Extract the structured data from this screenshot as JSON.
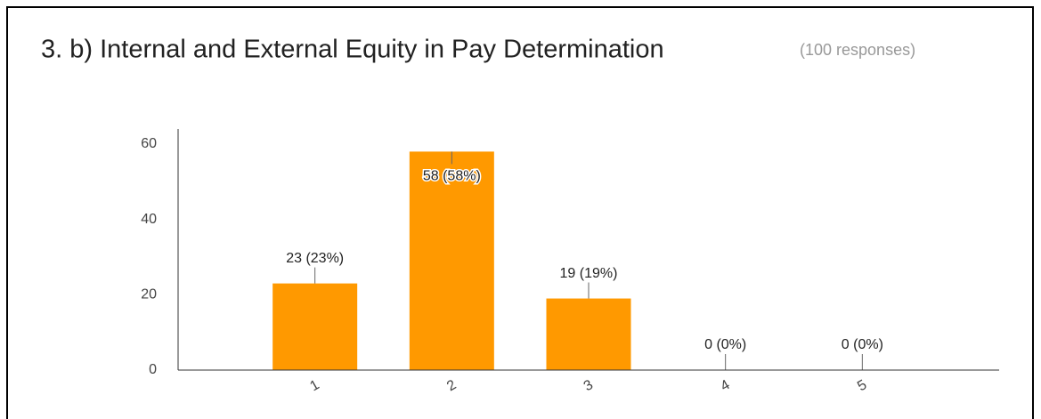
{
  "chart_data": {
    "type": "bar",
    "title": "3. b) Internal and External Equity in Pay Determination",
    "subtitle": "(100 responses)",
    "categories": [
      "1",
      "2",
      "3",
      "4",
      "5"
    ],
    "values": [
      23,
      58,
      19,
      0,
      0
    ],
    "value_labels": [
      "23 (23%)",
      "58 (58%)",
      "19 (19%)",
      "0 (0%)",
      "0 (0%)"
    ],
    "color": "#ff9900",
    "ylim": [
      0,
      64
    ],
    "yticks": [
      0,
      20,
      40,
      60
    ],
    "grid": false
  }
}
